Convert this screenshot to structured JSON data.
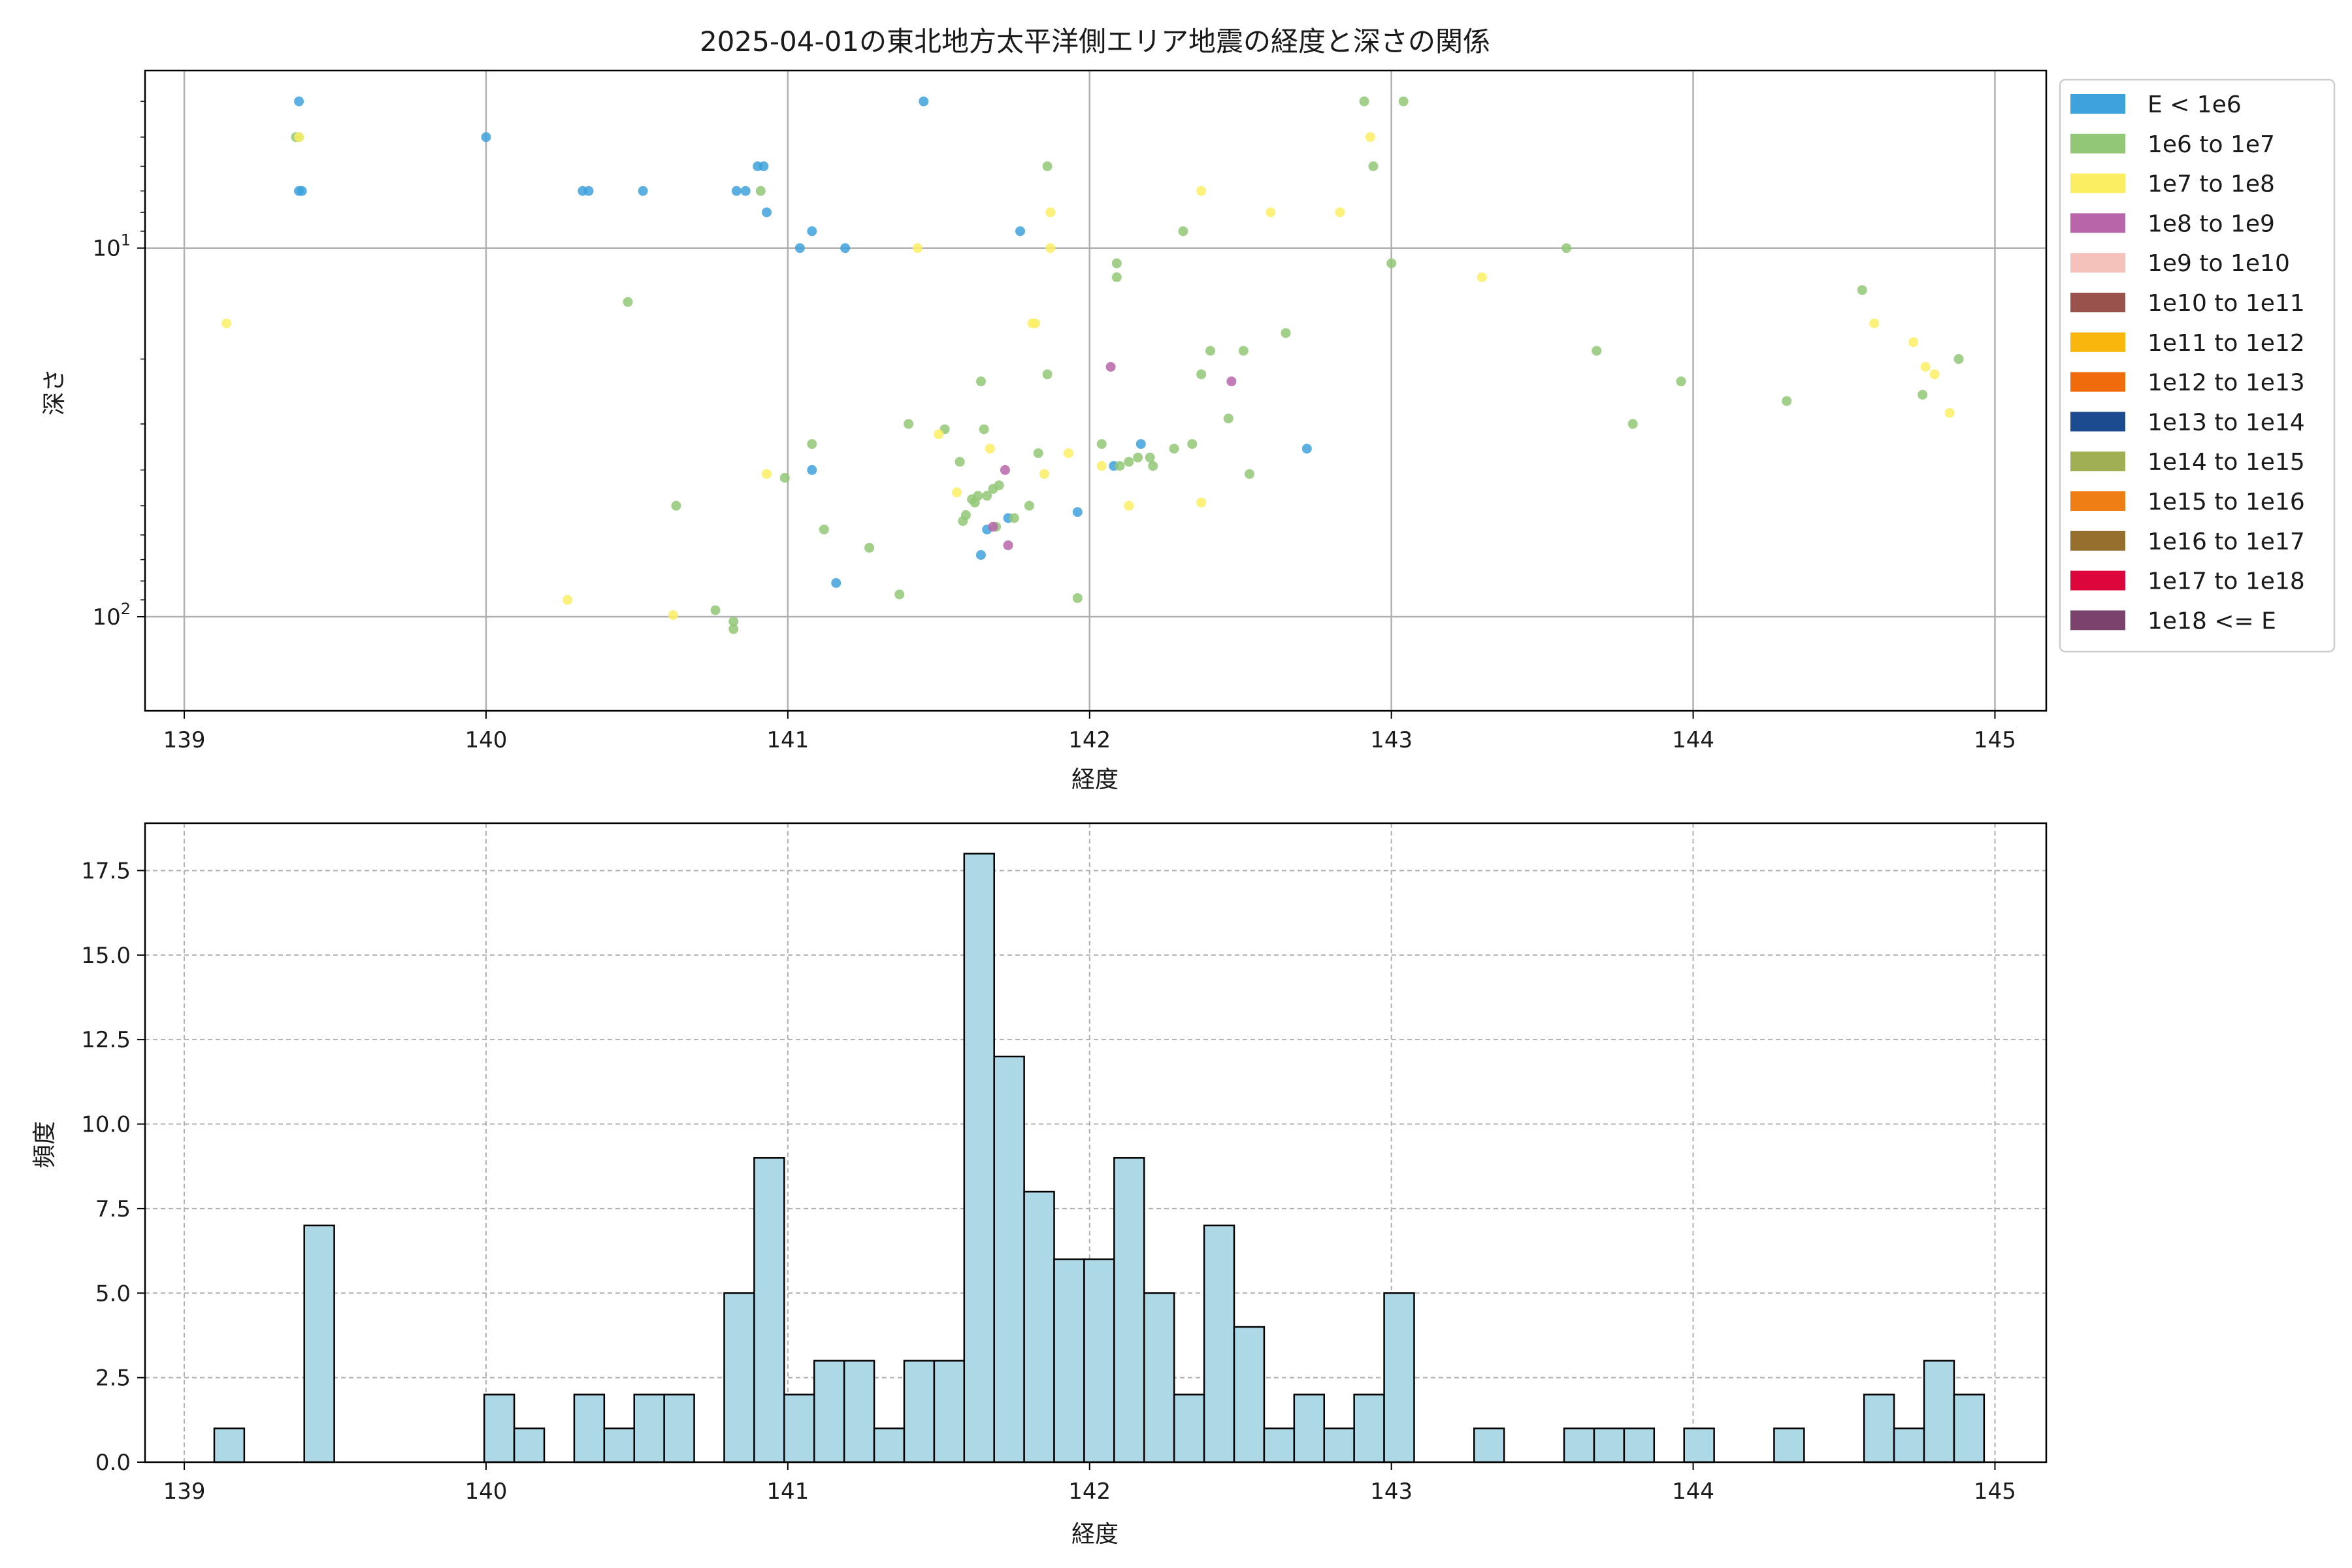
{
  "chart_data": [
    {
      "type": "scatter",
      "title": "2025-04-01の東北地方太平洋側エリア地震の経度と深さの関係",
      "xlabel": "経度",
      "ylabel": "深さ",
      "xlim": [
        138.87,
        145.17
      ],
      "ylim": [
        180,
        3.3
      ],
      "y_scale": "log",
      "y_inverted": true,
      "grid": true,
      "x_ticks": [
        "139",
        "140",
        "141",
        "142",
        "143",
        "144",
        "145"
      ],
      "y_tick_labels": [
        {
          "value": 10,
          "base": "10",
          "exp": "1"
        },
        {
          "value": 100,
          "base": "10",
          "exp": "2"
        }
      ],
      "legend": {
        "placement": "outside-right-top",
        "entries": [
          {
            "label": "E < 1e6",
            "color": "#3ea2dc"
          },
          {
            "label": "1e6 to 1e7",
            "color": "#92c875"
          },
          {
            "label": "1e7 to 1e8",
            "color": "#fcee63"
          },
          {
            "label": "1e8 to 1e9",
            "color": "#b866a9"
          },
          {
            "label": "1e9 to 1e10",
            "color": "#f4c1bb"
          },
          {
            "label": "1e10 to 1e11",
            "color": "#99524c"
          },
          {
            "label": "1e11 to 1e12",
            "color": "#f9b70e"
          },
          {
            "label": "1e12 to 1e13",
            "color": "#ef6b0b"
          },
          {
            "label": "1e13 to 1e14",
            "color": "#1c4b8f"
          },
          {
            "label": "1e14 to 1e15",
            "color": "#a0ae54"
          },
          {
            "label": "1e15 to 1e16",
            "color": "#ef7f14"
          },
          {
            "label": "1e16 to 1e17",
            "color": "#966f2e"
          },
          {
            "label": "1e17 to 1e18",
            "color": "#dc063c"
          },
          {
            "label": "1e18 <= E",
            "color": "#7b426e"
          }
        ]
      },
      "series": [
        {
          "class": "E < 1e6",
          "color": "#3ea2dc",
          "points": [
            [
              139.38,
              4
            ],
            [
              139.39,
              7
            ],
            [
              139.38,
              7
            ],
            [
              140.0,
              5
            ],
            [
              140.32,
              7
            ],
            [
              140.34,
              7
            ],
            [
              140.52,
              7
            ],
            [
              140.83,
              7
            ],
            [
              140.86,
              7
            ],
            [
              140.9,
              6
            ],
            [
              140.92,
              6
            ],
            [
              140.93,
              8
            ],
            [
              141.04,
              10
            ],
            [
              141.08,
              9
            ],
            [
              141.19,
              10
            ],
            [
              141.45,
              4
            ],
            [
              141.77,
              9
            ],
            [
              141.08,
              40
            ],
            [
              141.16,
              81
            ],
            [
              141.64,
              68
            ],
            [
              141.66,
              58
            ],
            [
              141.73,
              54
            ],
            [
              141.96,
              52
            ],
            [
              142.08,
              39
            ],
            [
              142.17,
              34
            ],
            [
              142.72,
              35
            ]
          ]
        },
        {
          "class": "1e6 to 1e7",
          "color": "#92c875",
          "points": [
            [
              139.37,
              5
            ],
            [
              139.38,
              5
            ],
            [
              140.47,
              14
            ],
            [
              140.63,
              50
            ],
            [
              140.76,
              96
            ],
            [
              140.82,
              103
            ],
            [
              140.82,
              108
            ],
            [
              140.91,
              7
            ],
            [
              140.99,
              42
            ],
            [
              141.08,
              34
            ],
            [
              141.12,
              58
            ],
            [
              141.27,
              65
            ],
            [
              141.37,
              87
            ],
            [
              141.4,
              30
            ],
            [
              141.52,
              31
            ],
            [
              141.57,
              38
            ],
            [
              141.58,
              55
            ],
            [
              141.59,
              53
            ],
            [
              141.61,
              48
            ],
            [
              141.62,
              49
            ],
            [
              141.63,
              47
            ],
            [
              141.64,
              23
            ],
            [
              141.65,
              31
            ],
            [
              141.66,
              47
            ],
            [
              141.68,
              45
            ],
            [
              141.69,
              57
            ],
            [
              141.7,
              44
            ],
            [
              141.75,
              54
            ],
            [
              141.8,
              50
            ],
            [
              141.83,
              36
            ],
            [
              141.86,
              22
            ],
            [
              141.86,
              6
            ],
            [
              141.96,
              89
            ],
            [
              142.09,
              11
            ],
            [
              142.09,
              12
            ],
            [
              142.04,
              34
            ],
            [
              142.1,
              39
            ],
            [
              142.13,
              38
            ],
            [
              142.16,
              37
            ],
            [
              142.2,
              37
            ],
            [
              142.21,
              39
            ],
            [
              142.28,
              35
            ],
            [
              142.31,
              9
            ],
            [
              142.34,
              34
            ],
            [
              142.37,
              22
            ],
            [
              142.4,
              19
            ],
            [
              142.46,
              29
            ],
            [
              142.51,
              19
            ],
            [
              142.53,
              41
            ],
            [
              142.65,
              17
            ],
            [
              142.91,
              4
            ],
            [
              143.04,
              4
            ],
            [
              142.94,
              6
            ],
            [
              143.0,
              11
            ],
            [
              143.58,
              10
            ],
            [
              143.68,
              19
            ],
            [
              143.8,
              30
            ],
            [
              143.96,
              23
            ],
            [
              144.31,
              26
            ],
            [
              144.56,
              13
            ],
            [
              144.76,
              25
            ],
            [
              144.88,
              20
            ]
          ]
        },
        {
          "class": "1e7 to 1e8",
          "color": "#fcee63",
          "points": [
            [
              139.14,
              16
            ],
            [
              139.38,
              5
            ],
            [
              140.27,
              90
            ],
            [
              140.62,
              99
            ],
            [
              140.93,
              41
            ],
            [
              141.43,
              10
            ],
            [
              141.5,
              32
            ],
            [
              141.56,
              46
            ],
            [
              141.67,
              35
            ],
            [
              141.81,
              16
            ],
            [
              141.82,
              16
            ],
            [
              141.87,
              8
            ],
            [
              141.87,
              10
            ],
            [
              141.85,
              41
            ],
            [
              141.93,
              36
            ],
            [
              142.04,
              39
            ],
            [
              142.13,
              50
            ],
            [
              142.37,
              7
            ],
            [
              142.37,
              49
            ],
            [
              142.6,
              8
            ],
            [
              142.83,
              8
            ],
            [
              142.93,
              5
            ],
            [
              143.3,
              12
            ],
            [
              144.6,
              16
            ],
            [
              144.73,
              18
            ],
            [
              144.77,
              21
            ],
            [
              144.8,
              22
            ],
            [
              144.85,
              28
            ]
          ]
        },
        {
          "class": "1e8 to 1e9",
          "color": "#b866a9",
          "points": [
            [
              142.07,
              21
            ],
            [
              142.47,
              23
            ],
            [
              141.72,
              40
            ],
            [
              141.68,
              57
            ],
            [
              141.73,
              64
            ]
          ]
        }
      ]
    },
    {
      "type": "bar",
      "subtype": "histogram",
      "title": "",
      "xlabel": "経度",
      "ylabel": "頻度",
      "xlim": [
        138.87,
        145.17
      ],
      "ylim": [
        0,
        18.9
      ],
      "grid": true,
      "bar_color": "#add8e6",
      "edge_color": "#000000",
      "x_ticks": [
        "139",
        "140",
        "141",
        "142",
        "143",
        "144",
        "145"
      ],
      "y_ticks": [
        "0.0",
        "2.5",
        "5.0",
        "7.5",
        "10.0",
        "12.5",
        "15.0",
        "17.5"
      ],
      "bin_start": 139.0,
      "bin_width": 0.0994,
      "values": [
        0,
        1,
        0,
        0,
        7,
        0,
        0,
        0,
        0,
        0,
        2,
        1,
        0,
        2,
        1,
        2,
        2,
        0,
        5,
        9,
        2,
        3,
        3,
        1,
        3,
        3,
        18,
        12,
        8,
        6,
        6,
        9,
        5,
        2,
        7,
        4,
        1,
        2,
        1,
        2,
        5,
        0,
        0,
        1,
        0,
        0,
        1,
        1,
        1,
        0,
        1,
        0,
        0,
        1,
        0,
        0,
        2,
        1,
        3,
        2
      ]
    }
  ]
}
